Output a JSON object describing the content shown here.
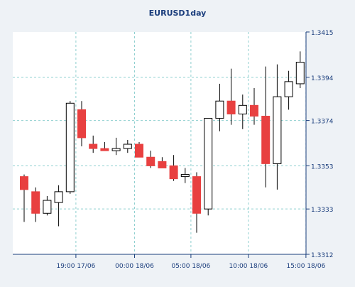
{
  "chart_data": {
    "type": "candlestick",
    "title": "EURUSD1day",
    "xlabel": "",
    "ylabel": "",
    "ylim": [
      1.3312,
      1.3415
    ],
    "y_ticks": [
      "1.3415",
      "1.3394",
      "1.3374",
      "1.3353",
      "1.3333",
      "1.3312"
    ],
    "x_ticks": [
      {
        "label": "19:00 17/06",
        "index": 4.5
      },
      {
        "label": "00:00 18/06",
        "index": 9.6
      },
      {
        "label": "05:00 18/06",
        "index": 14.5
      },
      {
        "label": "10:00 18/06",
        "index": 19.5
      },
      {
        "label": "15:00 18/06",
        "index": 24.5
      }
    ],
    "grid": true,
    "colors": {
      "bull_fill": "#ffffff",
      "bear_fill": "#e84040",
      "candle_outline": "#000000",
      "wick": "#000000",
      "grid": "#8fcfcf",
      "plot_bg": "#ffffff",
      "title": "#1a3d7c",
      "axis_text": "#1a3d7c"
    },
    "candles": [
      {
        "open": 1.3348,
        "high": 1.3349,
        "low": 1.3327,
        "close": 1.3342
      },
      {
        "open": 1.3341,
        "high": 1.3343,
        "low": 1.3327,
        "close": 1.3331
      },
      {
        "open": 1.3331,
        "high": 1.3339,
        "low": 1.333,
        "close": 1.3337
      },
      {
        "open": 1.3336,
        "high": 1.3344,
        "low": 1.3325,
        "close": 1.3341
      },
      {
        "open": 1.3341,
        "high": 1.3383,
        "low": 1.334,
        "close": 1.3382
      },
      {
        "open": 1.3379,
        "high": 1.3383,
        "low": 1.3362,
        "close": 1.3366
      },
      {
        "open": 1.3363,
        "high": 1.3367,
        "low": 1.3359,
        "close": 1.3361
      },
      {
        "open": 1.3361,
        "high": 1.3364,
        "low": 1.336,
        "close": 1.336
      },
      {
        "open": 1.336,
        "high": 1.3366,
        "low": 1.3358,
        "close": 1.3361
      },
      {
        "open": 1.3361,
        "high": 1.3365,
        "low": 1.3359,
        "close": 1.3363
      },
      {
        "open": 1.3363,
        "high": 1.3364,
        "low": 1.3357,
        "close": 1.3357
      },
      {
        "open": 1.3357,
        "high": 1.336,
        "low": 1.3352,
        "close": 1.3353
      },
      {
        "open": 1.3355,
        "high": 1.3357,
        "low": 1.3352,
        "close": 1.3352
      },
      {
        "open": 1.3353,
        "high": 1.3358,
        "low": 1.3346,
        "close": 1.3347
      },
      {
        "open": 1.3348,
        "high": 1.3352,
        "low": 1.3345,
        "close": 1.3349
      },
      {
        "open": 1.3348,
        "high": 1.335,
        "low": 1.3322,
        "close": 1.3331
      },
      {
        "open": 1.3333,
        "high": 1.3375,
        "low": 1.333,
        "close": 1.3375
      },
      {
        "open": 1.3375,
        "high": 1.3391,
        "low": 1.3369,
        "close": 1.3383
      },
      {
        "open": 1.3383,
        "high": 1.3398,
        "low": 1.3372,
        "close": 1.3377
      },
      {
        "open": 1.3377,
        "high": 1.3386,
        "low": 1.337,
        "close": 1.3381
      },
      {
        "open": 1.3381,
        "high": 1.3389,
        "low": 1.3372,
        "close": 1.3376
      },
      {
        "open": 1.3376,
        "high": 1.3399,
        "low": 1.3343,
        "close": 1.3354
      },
      {
        "open": 1.3354,
        "high": 1.34,
        "low": 1.3342,
        "close": 1.3385
      },
      {
        "open": 1.3385,
        "high": 1.3397,
        "low": 1.3379,
        "close": 1.3392
      },
      {
        "open": 1.3391,
        "high": 1.3406,
        "low": 1.3389,
        "close": 1.3401
      }
    ]
  }
}
